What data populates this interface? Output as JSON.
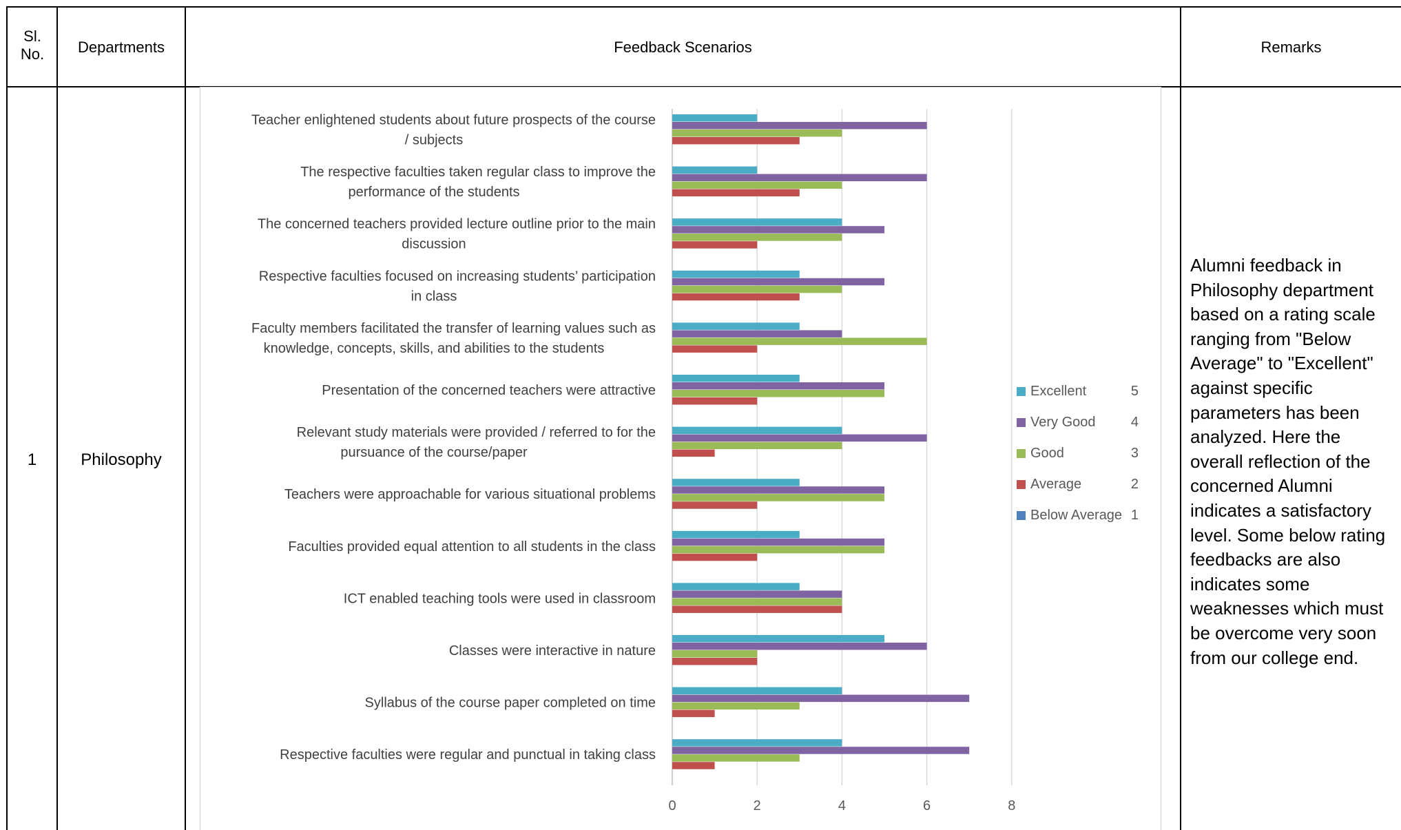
{
  "table": {
    "headers": {
      "sl_no": "Sl. No.",
      "departments": "Departments",
      "feedback": "Feedback Scenarios",
      "remarks": "Remarks"
    },
    "row": {
      "sl_no": "1",
      "department": "Philosophy",
      "remarks": "Alumni feedback in Philosophy department based on a rating scale ranging from \"Below Average\" to \"Excellent\" against specific parameters has been analyzed. Here the overall reflection of the concerned Alumni indicates a satisfactory level. Some below rating feedbacks are also indicates some weaknesses which must be overcome very soon from our college end."
    }
  },
  "chart_data": {
    "type": "bar",
    "orientation": "horizontal",
    "categories": [
      [
        "Teacher enlightened students about future prospects of the course",
        "/ subjects"
      ],
      [
        "The respective faculties taken regular class to improve the",
        "performance of the students"
      ],
      [
        "The concerned teachers provided lecture outline prior to the main",
        "discussion"
      ],
      [
        "Respective faculties focused on increasing students’ participation",
        "in class"
      ],
      [
        "Faculty members facilitated the transfer of learning values such as",
        "knowledge, concepts, skills, and abilities to the students"
      ],
      [
        "Presentation of the concerned teachers were attractive"
      ],
      [
        "Relevant study materials were provided / referred to for the",
        "pursuance of the course/paper"
      ],
      [
        "Teachers were approachable for various situational problems"
      ],
      [
        "Faculties provided equal attention to all students in the class"
      ],
      [
        "ICT enabled teaching tools were used in classroom"
      ],
      [
        "Classes were interactive in nature"
      ],
      [
        "Syllabus of the course paper  completed on time"
      ],
      [
        "Respective faculties were regular and punctual in taking class"
      ]
    ],
    "series": [
      {
        "name": "Excellent",
        "rating": "5",
        "color": "#4BACC6",
        "values": [
          2,
          2,
          4,
          3,
          3,
          3,
          4,
          3,
          3,
          3,
          5,
          4,
          4
        ]
      },
      {
        "name": "Very Good",
        "rating": "4",
        "color": "#8064A2",
        "values": [
          6,
          6,
          5,
          5,
          4,
          5,
          6,
          5,
          5,
          4,
          6,
          7,
          7
        ]
      },
      {
        "name": "Good",
        "rating": "3",
        "color": "#9BBB59",
        "values": [
          4,
          4,
          4,
          4,
          6,
          5,
          4,
          5,
          5,
          4,
          2,
          3,
          3
        ]
      },
      {
        "name": "Average",
        "rating": "2",
        "color": "#C0504D",
        "values": [
          3,
          3,
          2,
          3,
          2,
          2,
          1,
          2,
          2,
          4,
          2,
          1,
          1
        ]
      },
      {
        "name": "Below Average",
        "rating": "1",
        "color": "#4F81BD",
        "values": [
          0,
          0,
          0,
          0,
          0,
          0,
          0,
          0,
          0,
          0,
          0,
          0,
          0
        ]
      }
    ],
    "xlim": [
      0,
      8
    ],
    "xticks": [
      "0",
      "2",
      "4",
      "6",
      "8"
    ],
    "grid": true,
    "legend": "right"
  }
}
